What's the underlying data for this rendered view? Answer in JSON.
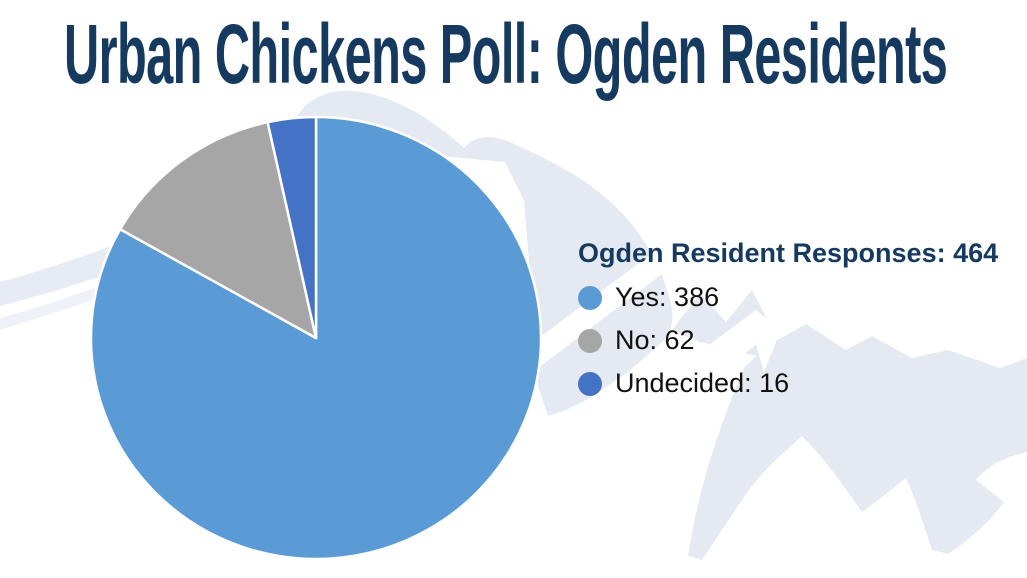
{
  "title": "Urban Chickens Poll: Ogden Residents",
  "colors": {
    "title_navy": "#16395f",
    "yes_blue": "#5b9bd5",
    "no_gray": "#a6a6a6",
    "undecided_blue": "#4472c4",
    "watermark_light_blue_gray": "#e5eaf2"
  },
  "legend": {
    "header": "Ogden Resident Responses: 464",
    "items": [
      {
        "name": "Yes",
        "label": "Yes: 386",
        "color": "#5b9bd5"
      },
      {
        "name": "No",
        "label": "No: 62",
        "color": "#a6a6a6"
      },
      {
        "name": "Undecided",
        "label": "Undecided: 16",
        "color": "#4472c4"
      }
    ]
  },
  "chart_data": {
    "type": "pie",
    "title": "Urban Chickens Poll: Ogden Residents",
    "total_label": "Ogden Resident Responses: 464",
    "total": 464,
    "categories": [
      "Yes",
      "No",
      "Undecided"
    ],
    "values": [
      386,
      62,
      16
    ],
    "colors": [
      "#5b9bd5",
      "#a6a6a6",
      "#4472c4"
    ],
    "start_angle_deg": -90,
    "direction": "clockwise",
    "legend_position": "right",
    "slice_border_color": "#ffffff"
  }
}
